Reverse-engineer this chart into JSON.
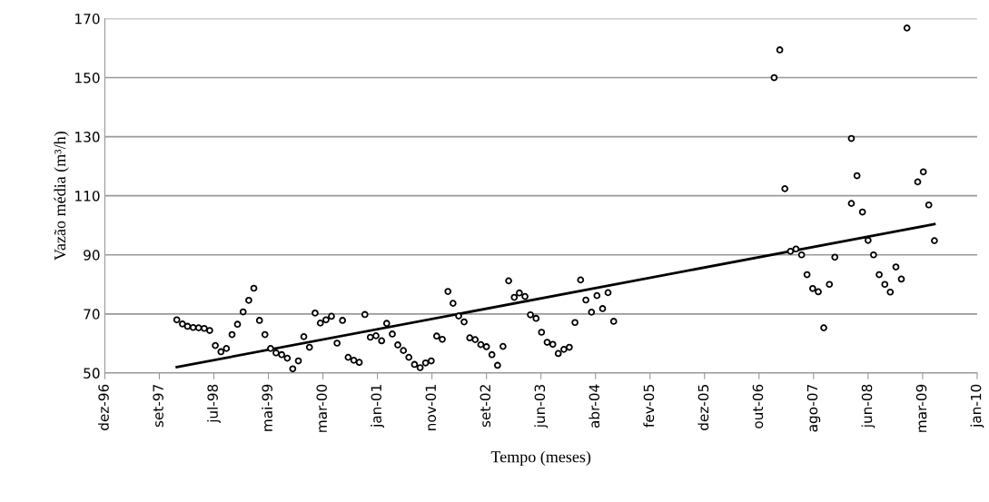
{
  "chart_data": {
    "type": "scatter",
    "xlabel": "Tempo (meses)",
    "ylabel": "Vazão média (m³/h)",
    "xlim": [
      "1996-12-01",
      "2010-01-22"
    ],
    "xticks": [
      {
        "value": "1996-12-01",
        "label": "dez-96"
      },
      {
        "value": "1997-09-27",
        "label": "set-97"
      },
      {
        "value": "1998-07-24",
        "label": "jul-98"
      },
      {
        "value": "1999-05-20",
        "label": "mai-99"
      },
      {
        "value": "2000-03-15",
        "label": "mar-00"
      },
      {
        "value": "2001-01-09",
        "label": "jan-01"
      },
      {
        "value": "2001-11-05",
        "label": "nov-01"
      },
      {
        "value": "2002-09-01",
        "label": "set-02"
      },
      {
        "value": "2003-06-28",
        "label": "jun-03"
      },
      {
        "value": "2004-04-23",
        "label": "abr-04"
      },
      {
        "value": "2005-02-17",
        "label": "fev-05"
      },
      {
        "value": "2005-12-14",
        "label": "dez-05"
      },
      {
        "value": "2006-10-10",
        "label": "out-06"
      },
      {
        "value": "2007-08-06",
        "label": "ago-07"
      },
      {
        "value": "2008-06-01",
        "label": "jun-08"
      },
      {
        "value": "2009-03-28",
        "label": "mar-09"
      },
      {
        "value": "2010-01-22",
        "label": "jan-10"
      }
    ],
    "ylim": [
      50,
      170
    ],
    "yticks": [
      50,
      70,
      90,
      110,
      130,
      150,
      170
    ],
    "grid": "y",
    "marker": "circle",
    "series": [
      {
        "color": "#000000",
        "x": [
          "1998-01",
          "1998-02",
          "1998-03",
          "1998-04",
          "1998-05",
          "1998-06",
          "1998-07",
          "1998-08",
          "1998-09",
          "1998-10",
          "1998-11",
          "1998-12",
          "1999-01",
          "1999-02",
          "1999-03",
          "1999-04",
          "1999-05",
          "1999-06",
          "1999-07",
          "1999-08",
          "1999-09",
          "1999-10",
          "1999-11",
          "1999-12",
          "2000-01",
          "2000-02",
          "2000-03",
          "2000-04",
          "2000-05",
          "2000-06",
          "2000-07",
          "2000-08",
          "2000-09",
          "2000-10",
          "2000-11",
          "2000-12",
          "2001-01",
          "2001-02",
          "2001-03",
          "2001-04",
          "2001-05",
          "2001-06",
          "2001-07",
          "2001-08",
          "2001-09",
          "2001-10",
          "2001-11",
          "2001-12",
          "2002-01",
          "2002-02",
          "2002-03",
          "2002-04",
          "2002-05",
          "2002-06",
          "2002-07",
          "2002-08",
          "2002-09",
          "2002-10",
          "2002-11",
          "2002-12",
          "2003-01",
          "2003-02",
          "2003-03",
          "2003-04",
          "2003-05",
          "2003-06",
          "2003-07",
          "2003-08",
          "2003-09",
          "2003-10",
          "2003-11",
          "2003-12",
          "2004-01",
          "2004-02",
          "2004-03",
          "2004-04",
          "2004-05",
          "2004-06",
          "2004-07",
          "2004-08",
          "2007-01",
          "2007-02",
          "2007-03",
          "2007-04",
          "2007-05",
          "2007-06",
          "2007-07",
          "2007-08",
          "2007-09",
          "2007-10",
          "2007-11",
          "2007-12",
          "2008-03",
          "2008-03",
          "2008-04",
          "2008-05",
          "2008-06",
          "2008-07",
          "2008-08",
          "2008-09",
          "2008-10",
          "2008-11",
          "2008-12",
          "2009-01",
          "2009-03",
          "2009-04",
          "2009-05",
          "2009-06"
        ],
        "values": [
          68.0,
          66.6,
          65.8,
          65.4,
          65.3,
          65.1,
          64.4,
          59.3,
          57.2,
          58.3,
          63.0,
          66.5,
          70.7,
          74.6,
          78.7,
          67.8,
          63.0,
          58.3,
          56.8,
          56.2,
          55.0,
          51.4,
          54.1,
          62.3,
          58.7,
          70.3,
          66.9,
          68.0,
          69.2,
          60.1,
          67.8,
          55.3,
          54.3,
          53.6,
          69.8,
          62.1,
          62.6,
          60.9,
          66.8,
          63.2,
          59.5,
          57.6,
          55.3,
          52.9,
          51.8,
          53.4,
          54.1,
          62.5,
          61.4,
          77.6,
          73.6,
          69.3,
          67.3,
          61.9,
          61.3,
          59.6,
          58.9,
          56.2,
          52.6,
          59.0,
          81.2,
          75.6,
          77.1,
          75.9,
          69.7,
          68.5,
          63.8,
          60.4,
          59.7,
          56.6,
          58.0,
          58.7,
          67.1,
          81.5,
          74.7,
          70.6,
          76.2,
          71.8,
          77.2,
          67.5,
          150.0,
          159.4,
          112.4,
          91.2,
          92.0,
          90.0,
          83.3,
          78.6,
          77.5,
          65.3,
          80.0,
          89.2,
          129.4,
          107.4,
          116.8,
          104.5,
          94.9,
          90.0,
          83.3,
          80.0,
          77.4,
          85.9,
          81.8,
          166.8,
          114.7,
          118.1,
          106.9,
          94.8
        ]
      },
      {
        "type": "line",
        "color": "#000000",
        "marker": "none",
        "x": [
          "1998-01",
          "2009-06"
        ],
        "values": [
          52.0,
          100.4
        ]
      }
    ]
  }
}
